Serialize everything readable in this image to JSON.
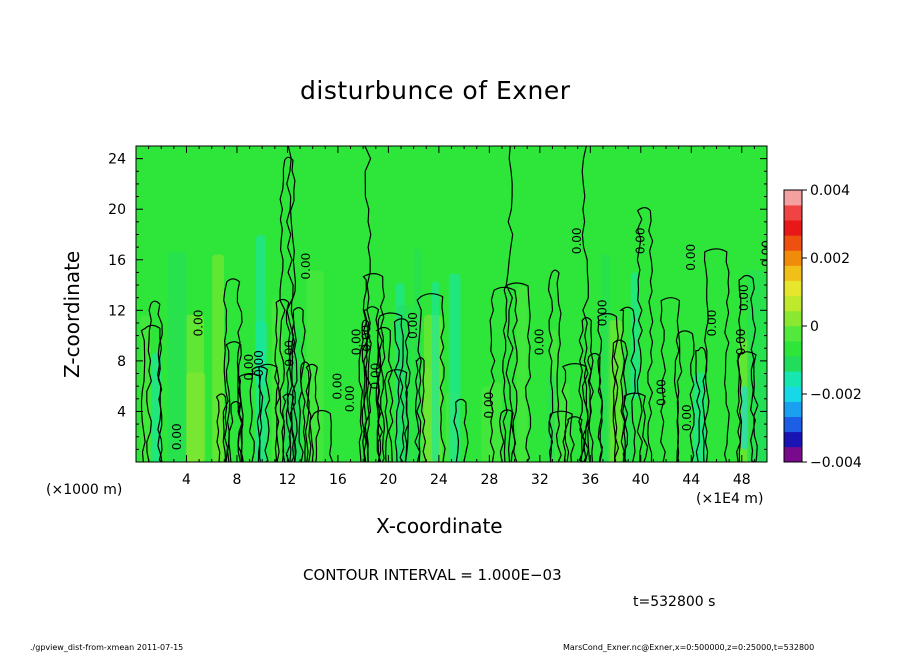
{
  "chart_data": {
    "type": "heatmap",
    "title": "disturbunce of Exner",
    "xlabel": "X-coordinate",
    "ylabel": "Z-coordinate",
    "x_unit_left": "(×1000 m)",
    "x_unit_right": "(×1E4 m)",
    "xlim": [
      0,
      50
    ],
    "ylim": [
      0,
      25
    ],
    "x_ticks": [
      "4",
      "8",
      "12",
      "16",
      "20",
      "24",
      "28",
      "32",
      "36",
      "40",
      "44",
      "48"
    ],
    "y_ticks": [
      "4",
      "8",
      "12",
      "16",
      "20",
      "24"
    ],
    "colorbar": {
      "range": [
        -0.004,
        0.004
      ],
      "tick_labels": [
        "0.004",
        "0.002",
        "0",
        "−0.002",
        "−0.004"
      ],
      "colors": [
        "#7a0a8c",
        "#1a14b4",
        "#1c5ee6",
        "#1aa0f0",
        "#16d8e6",
        "#16e6b0",
        "#22dc5c",
        "#2ee63a",
        "#52e83c",
        "#8ae830",
        "#bfe92c",
        "#e6e62c",
        "#f0c018",
        "#f08c0a",
        "#ee5010",
        "#e81818",
        "#f04444",
        "#f5a0a0"
      ]
    },
    "contour_interval_text": "CONTOUR INTERVAL = 1.000E−03",
    "contour_labels": [
      {
        "text": "0.00",
        "x": 3.3,
        "z": 2.0
      },
      {
        "text": "0.00",
        "x": 5.0,
        "z": 11.0
      },
      {
        "text": "0.00",
        "x": 9.0,
        "z": 7.5
      },
      {
        "text": "0.00",
        "x": 9.8,
        "z": 7.8
      },
      {
        "text": "0.00",
        "x": 12.2,
        "z": 8.6
      },
      {
        "text": "0.00",
        "x": 13.5,
        "z": 15.5
      },
      {
        "text": "0.00",
        "x": 16.0,
        "z": 6.0
      },
      {
        "text": "0.00",
        "x": 17.0,
        "z": 5.0
      },
      {
        "text": "0.00",
        "x": 17.5,
        "z": 9.5
      },
      {
        "text": "0.00",
        "x": 18.3,
        "z": 9.8
      },
      {
        "text": "0.00",
        "x": 19.0,
        "z": 6.8
      },
      {
        "text": "0.00",
        "x": 22.0,
        "z": 10.8
      },
      {
        "text": "0.00",
        "x": 28.0,
        "z": 4.5
      },
      {
        "text": "0.00",
        "x": 32.0,
        "z": 9.5
      },
      {
        "text": "0.00",
        "x": 35.0,
        "z": 17.5
      },
      {
        "text": "0.00",
        "x": 37.0,
        "z": 11.8
      },
      {
        "text": "0.00",
        "x": 40.0,
        "z": 17.5
      },
      {
        "text": "0.00",
        "x": 41.7,
        "z": 5.5
      },
      {
        "text": "0.00",
        "x": 43.7,
        "z": 3.5
      },
      {
        "text": "0.00",
        "x": 44.0,
        "z": 16.2
      },
      {
        "text": "0.00",
        "x": 45.7,
        "z": 11.0
      },
      {
        "text": "0.00",
        "x": 48.0,
        "z": 9.5
      },
      {
        "text": "0.00",
        "x": 48.2,
        "z": 13.0
      },
      {
        "text": "0.00",
        "x": 50.0,
        "z": 16.5
      }
    ]
  },
  "time_label": "t=532800 s",
  "footer": {
    "left": "./gpview_dist-from-xmean  2011-07-15",
    "right": "MarsCond_Exner.nc@Exner,x=0:500000,z=0:25000,t=532800"
  }
}
